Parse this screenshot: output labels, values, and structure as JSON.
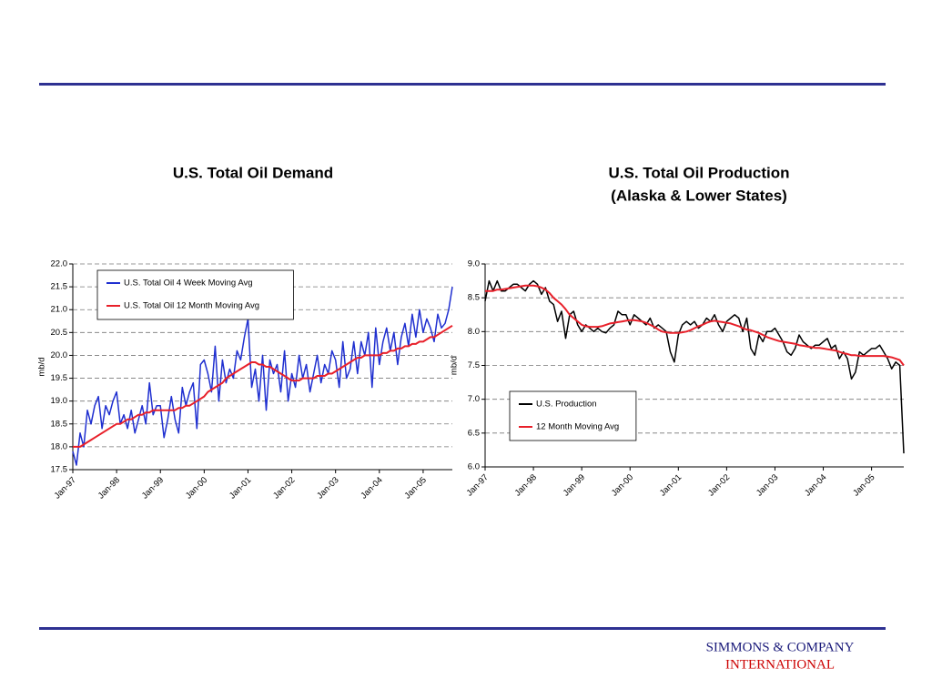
{
  "footer": {
    "line1": "SIMMONS & COMPANY",
    "line2": "INTERNATIONAL"
  },
  "chart_data": [
    {
      "type": "line",
      "title": "U.S. Total Oil Demand",
      "ylabel": "mb/d",
      "legend": "upper left",
      "grid": true,
      "categories": [
        "Jan-97",
        null,
        null,
        null,
        null,
        null,
        null,
        null,
        null,
        null,
        null,
        null,
        "Jan-98",
        null,
        null,
        null,
        null,
        null,
        null,
        null,
        null,
        null,
        null,
        null,
        "Jan-99",
        null,
        null,
        null,
        null,
        null,
        null,
        null,
        null,
        null,
        null,
        null,
        "Jan-00",
        null,
        null,
        null,
        null,
        null,
        null,
        null,
        null,
        null,
        null,
        null,
        "Jan-01",
        null,
        null,
        null,
        null,
        null,
        null,
        null,
        null,
        null,
        null,
        null,
        "Jan-02",
        null,
        null,
        null,
        null,
        null,
        null,
        null,
        null,
        null,
        null,
        null,
        "Jan-03",
        null,
        null,
        null,
        null,
        null,
        null,
        null,
        null,
        null,
        null,
        null,
        "Jan-04",
        null,
        null,
        null,
        null,
        null,
        null,
        null,
        null,
        null,
        null,
        null,
        "Jan-05",
        null,
        null,
        null,
        null,
        null,
        null,
        null,
        null
      ],
      "ylim": [
        17.5,
        22
      ],
      "yticks": [
        17.5,
        {
          "value": 18,
          "label": "18.0"
        },
        18.5,
        {
          "value": 19,
          "label": "19.0"
        },
        19.5,
        {
          "value": 20,
          "label": "20.0"
        },
        20.5,
        {
          "value": 21,
          "label": "21.0"
        },
        21.5,
        {
          "value": 22,
          "label": "22.0"
        }
      ],
      "series": [
        {
          "name": "U.S. Total Oil 4 Week Moving Avg",
          "color": "#1f2fd0",
          "values": [
            17.9,
            17.6,
            18.3,
            18.0,
            18.8,
            18.5,
            18.9,
            19.1,
            18.4,
            18.9,
            18.7,
            19.0,
            19.2,
            18.5,
            18.7,
            18.4,
            18.8,
            18.3,
            18.6,
            18.9,
            18.5,
            19.4,
            18.7,
            18.9,
            18.9,
            18.2,
            18.6,
            19.1,
            18.6,
            18.3,
            19.3,
            18.9,
            19.2,
            19.4,
            18.4,
            19.8,
            19.9,
            19.6,
            19.2,
            20.2,
            19.0,
            19.9,
            19.4,
            19.7,
            19.5,
            20.1,
            19.9,
            20.4,
            20.8,
            19.3,
            19.7,
            19.0,
            20.0,
            18.8,
            19.9,
            19.6,
            19.8,
            19.2,
            20.1,
            19.0,
            19.6,
            19.3,
            20.0,
            19.5,
            19.8,
            19.2,
            19.6,
            20.0,
            19.4,
            19.8,
            19.6,
            20.1,
            19.9,
            19.3,
            20.3,
            19.5,
            19.7,
            20.3,
            19.6,
            20.3,
            20.0,
            20.5,
            19.3,
            20.6,
            19.8,
            20.3,
            20.6,
            20.1,
            20.5,
            19.8,
            20.4,
            20.7,
            20.2,
            20.9,
            20.4,
            21.0,
            20.5,
            20.8,
            20.6,
            20.3,
            20.9,
            20.6,
            20.7,
            21.0,
            21.5
          ]
        },
        {
          "name": "U.S. Total Oil 12 Month Moving Avg",
          "color": "#e8202a",
          "values": [
            18.0,
            18.0,
            18.0,
            18.05,
            18.1,
            18.15,
            18.2,
            18.25,
            18.3,
            18.35,
            18.4,
            18.45,
            18.5,
            18.5,
            18.55,
            18.6,
            18.6,
            18.65,
            18.7,
            18.7,
            18.75,
            18.75,
            18.8,
            18.8,
            18.8,
            18.8,
            18.8,
            18.8,
            18.8,
            18.85,
            18.85,
            18.9,
            18.9,
            18.95,
            19.0,
            19.05,
            19.1,
            19.2,
            19.25,
            19.3,
            19.35,
            19.4,
            19.5,
            19.55,
            19.6,
            19.65,
            19.7,
            19.75,
            19.8,
            19.85,
            19.85,
            19.8,
            19.8,
            19.75,
            19.75,
            19.7,
            19.65,
            19.6,
            19.55,
            19.5,
            19.45,
            19.45,
            19.45,
            19.5,
            19.5,
            19.5,
            19.5,
            19.55,
            19.55,
            19.55,
            19.6,
            19.6,
            19.65,
            19.7,
            19.75,
            19.8,
            19.85,
            19.9,
            19.95,
            19.95,
            20.0,
            20.0,
            20.0,
            20.0,
            20.0,
            20.05,
            20.05,
            20.1,
            20.1,
            20.15,
            20.15,
            20.2,
            20.2,
            20.25,
            20.25,
            20.3,
            20.3,
            20.35,
            20.4,
            20.4,
            20.45,
            20.5,
            20.55,
            20.6,
            20.65
          ]
        }
      ]
    },
    {
      "type": "line",
      "title": "U.S. Total Oil Production",
      "subtitle": "(Alaska & Lower States)",
      "ylabel": "mb/d",
      "legend": "lower left",
      "grid": true,
      "categories": [
        "Jan-97",
        null,
        null,
        null,
        null,
        null,
        null,
        null,
        null,
        null,
        null,
        null,
        "Jan-98",
        null,
        null,
        null,
        null,
        null,
        null,
        null,
        null,
        null,
        null,
        null,
        "Jan-99",
        null,
        null,
        null,
        null,
        null,
        null,
        null,
        null,
        null,
        null,
        null,
        "Jan-00",
        null,
        null,
        null,
        null,
        null,
        null,
        null,
        null,
        null,
        null,
        null,
        "Jan-01",
        null,
        null,
        null,
        null,
        null,
        null,
        null,
        null,
        null,
        null,
        null,
        "Jan-02",
        null,
        null,
        null,
        null,
        null,
        null,
        null,
        null,
        null,
        null,
        null,
        "Jan-03",
        null,
        null,
        null,
        null,
        null,
        null,
        null,
        null,
        null,
        null,
        null,
        "Jan-04",
        null,
        null,
        null,
        null,
        null,
        null,
        null,
        null,
        null,
        null,
        null,
        "Jan-05",
        null,
        null,
        null,
        null,
        null,
        null,
        null,
        null
      ],
      "ylim": [
        6,
        9
      ],
      "yticks": [
        {
          "value": 6,
          "label": "6.0"
        },
        6.5,
        {
          "value": 7,
          "label": "7.0"
        },
        7.5,
        {
          "value": 8,
          "label": "8.0"
        },
        8.5,
        {
          "value": 9,
          "label": "9.0"
        }
      ],
      "series": [
        {
          "name": "U.S. Production",
          "color": "#000000",
          "values": [
            8.45,
            8.75,
            8.6,
            8.75,
            8.6,
            8.6,
            8.65,
            8.7,
            8.7,
            8.65,
            8.6,
            8.7,
            8.75,
            8.7,
            8.55,
            8.65,
            8.45,
            8.4,
            8.15,
            8.3,
            7.9,
            8.25,
            8.3,
            8.1,
            8.0,
            8.1,
            8.05,
            8.0,
            8.05,
            8.0,
            7.98,
            8.05,
            8.1,
            8.3,
            8.25,
            8.25,
            8.1,
            8.25,
            8.2,
            8.15,
            8.1,
            8.2,
            8.05,
            8.1,
            8.05,
            8.0,
            7.7,
            7.55,
            7.95,
            8.1,
            8.15,
            8.1,
            8.15,
            8.05,
            8.1,
            8.2,
            8.15,
            8.25,
            8.1,
            8.0,
            8.15,
            8.2,
            8.25,
            8.2,
            8.0,
            8.2,
            7.75,
            7.65,
            7.95,
            7.85,
            8.0,
            8.0,
            8.05,
            7.95,
            7.85,
            7.7,
            7.65,
            7.75,
            7.95,
            7.85,
            7.8,
            7.75,
            7.8,
            7.8,
            7.85,
            7.9,
            7.75,
            7.8,
            7.6,
            7.7,
            7.6,
            7.3,
            7.4,
            7.7,
            7.65,
            7.7,
            7.75,
            7.75,
            7.8,
            7.7,
            7.6,
            7.45,
            7.55,
            7.5,
            6.2
          ]
        },
        {
          "name": "12 Month Moving Avg",
          "color": "#e8202a",
          "values": [
            8.6,
            8.6,
            8.6,
            8.62,
            8.62,
            8.63,
            8.64,
            8.65,
            8.66,
            8.67,
            8.68,
            8.68,
            8.68,
            8.67,
            8.65,
            8.62,
            8.57,
            8.5,
            8.45,
            8.4,
            8.33,
            8.25,
            8.2,
            8.15,
            8.1,
            8.08,
            8.07,
            8.07,
            8.07,
            8.08,
            8.1,
            8.12,
            8.13,
            8.14,
            8.15,
            8.16,
            8.17,
            8.17,
            8.16,
            8.15,
            8.13,
            8.1,
            8.07,
            8.03,
            8.0,
            7.99,
            7.98,
            7.98,
            7.98,
            7.99,
            8.0,
            8.02,
            8.05,
            8.08,
            8.1,
            8.13,
            8.15,
            8.16,
            8.15,
            8.14,
            8.13,
            8.12,
            8.1,
            8.08,
            8.05,
            8.03,
            8.02,
            8.0,
            7.98,
            7.95,
            7.92,
            7.9,
            7.88,
            7.86,
            7.85,
            7.84,
            7.83,
            7.82,
            7.8,
            7.79,
            7.78,
            7.77,
            7.76,
            7.76,
            7.75,
            7.74,
            7.73,
            7.72,
            7.7,
            7.68,
            7.67,
            7.65,
            7.65,
            7.64,
            7.64,
            7.64,
            7.64,
            7.64,
            7.64,
            7.64,
            7.63,
            7.62,
            7.6,
            7.58,
            7.5
          ]
        }
      ]
    }
  ]
}
